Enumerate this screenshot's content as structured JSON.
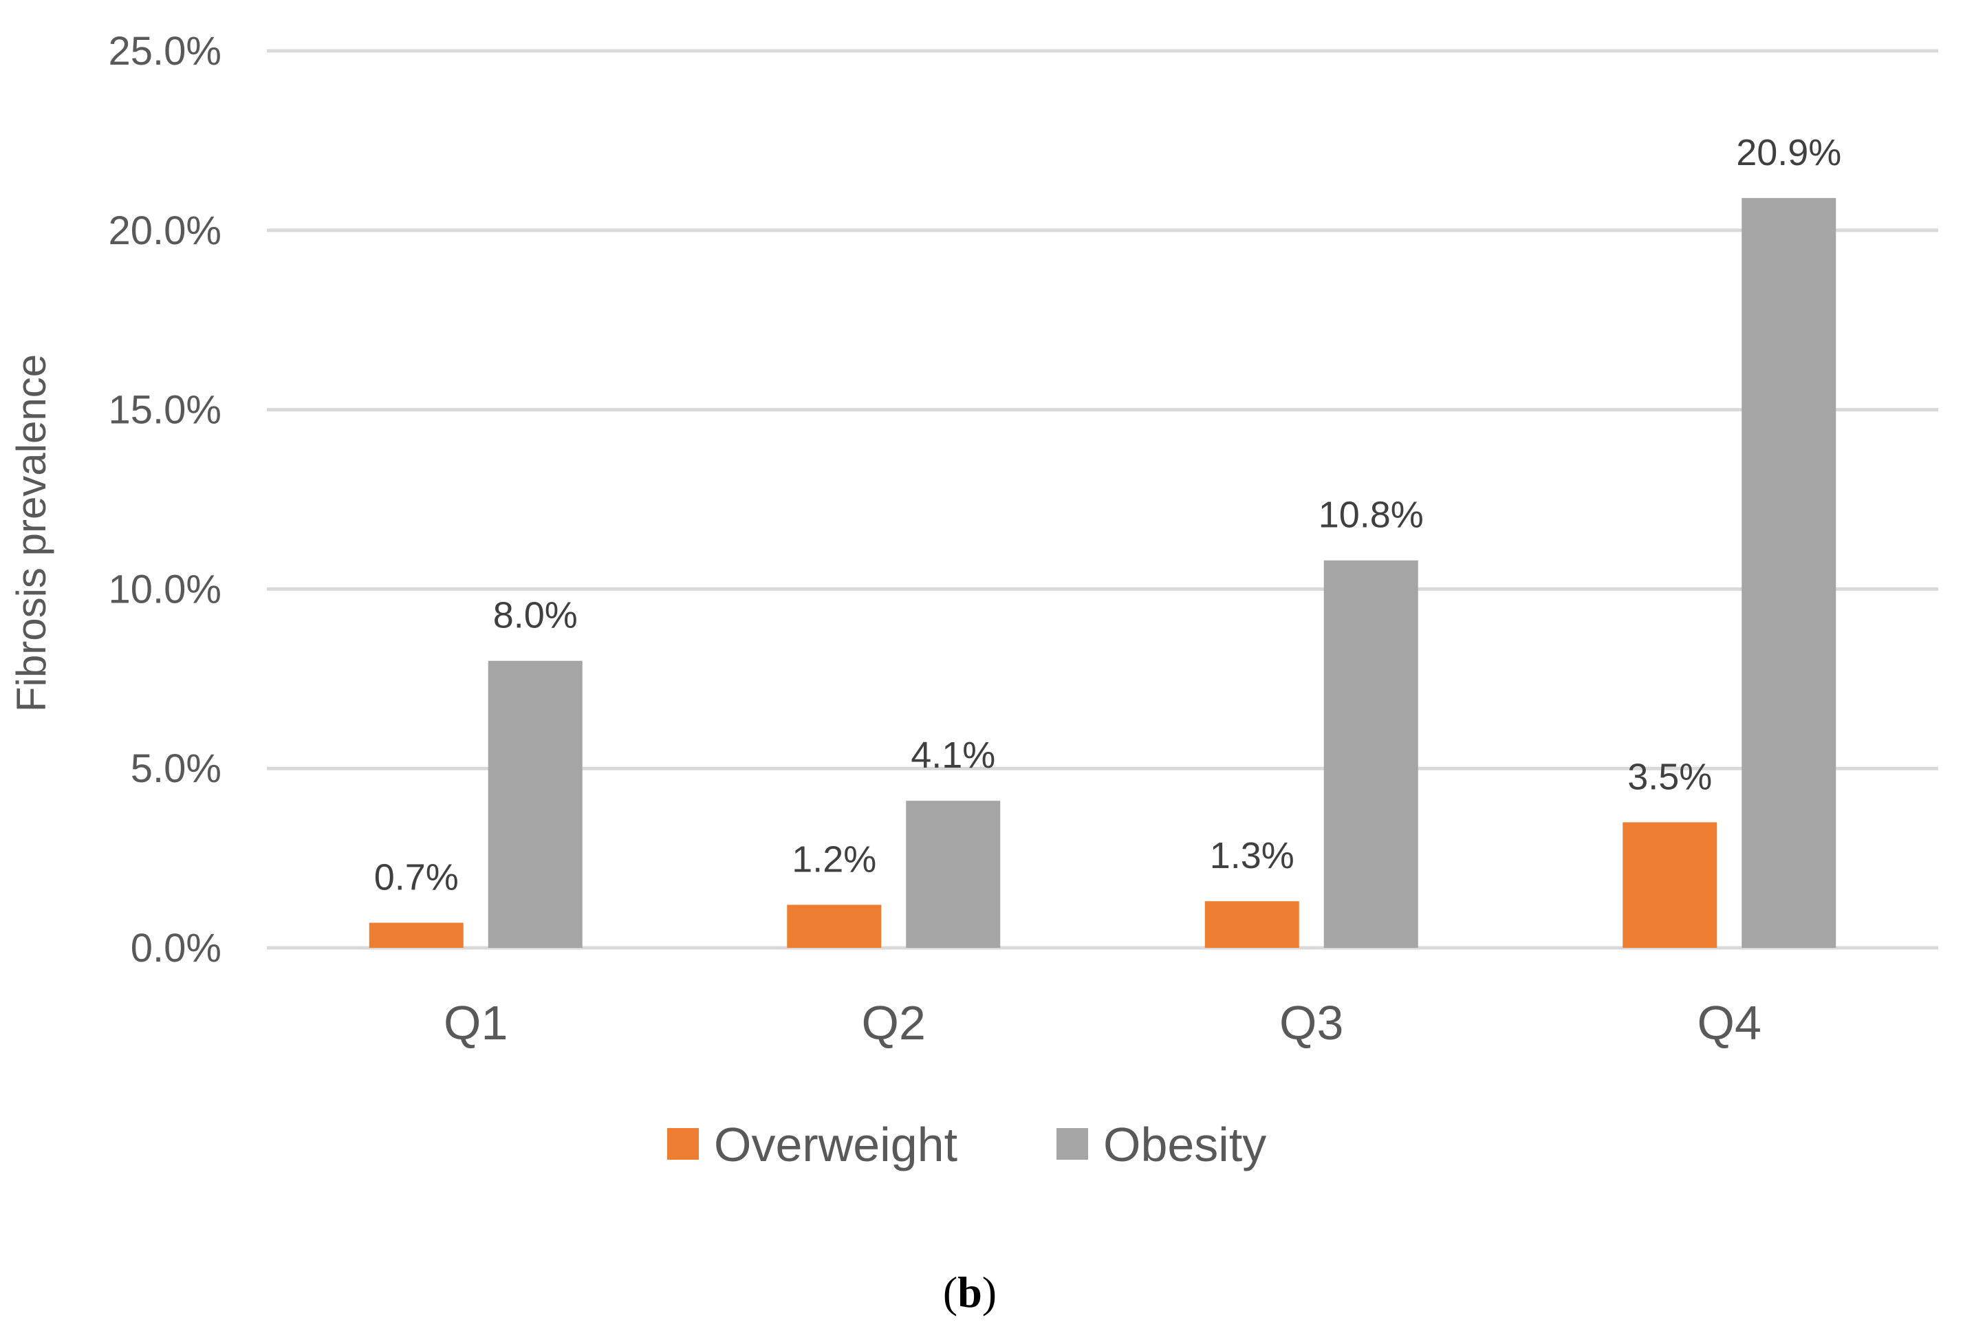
{
  "chart_data": {
    "type": "bar",
    "categories": [
      "Q1",
      "Q2",
      "Q3",
      "Q4"
    ],
    "series": [
      {
        "name": "Overweight",
        "color": "#ED7D31",
        "values": [
          0.7,
          1.2,
          1.3,
          3.5
        ],
        "labels": [
          "0.7%",
          "1.2%",
          "1.3%",
          "3.5%"
        ]
      },
      {
        "name": "Obesity",
        "color": "#A5A5A5",
        "values": [
          8.0,
          4.1,
          10.8,
          20.9
        ],
        "labels": [
          "8.0%",
          "4.1%",
          "10.8%",
          "20.9%"
        ]
      }
    ],
    "ylabel": "Fibrosis prevalence",
    "ylim": [
      0,
      25
    ],
    "yticks": [
      0,
      5,
      10,
      15,
      20,
      25
    ],
    "ytick_labels": [
      "0.0%",
      "5.0%",
      "10.0%",
      "15.0%",
      "20.0%",
      "25.0%"
    ],
    "grid": true,
    "gridline_color": "#D9D9D9",
    "legend_position": "bottom"
  },
  "caption": {
    "open": "(",
    "letter": "b",
    "close": ")"
  }
}
